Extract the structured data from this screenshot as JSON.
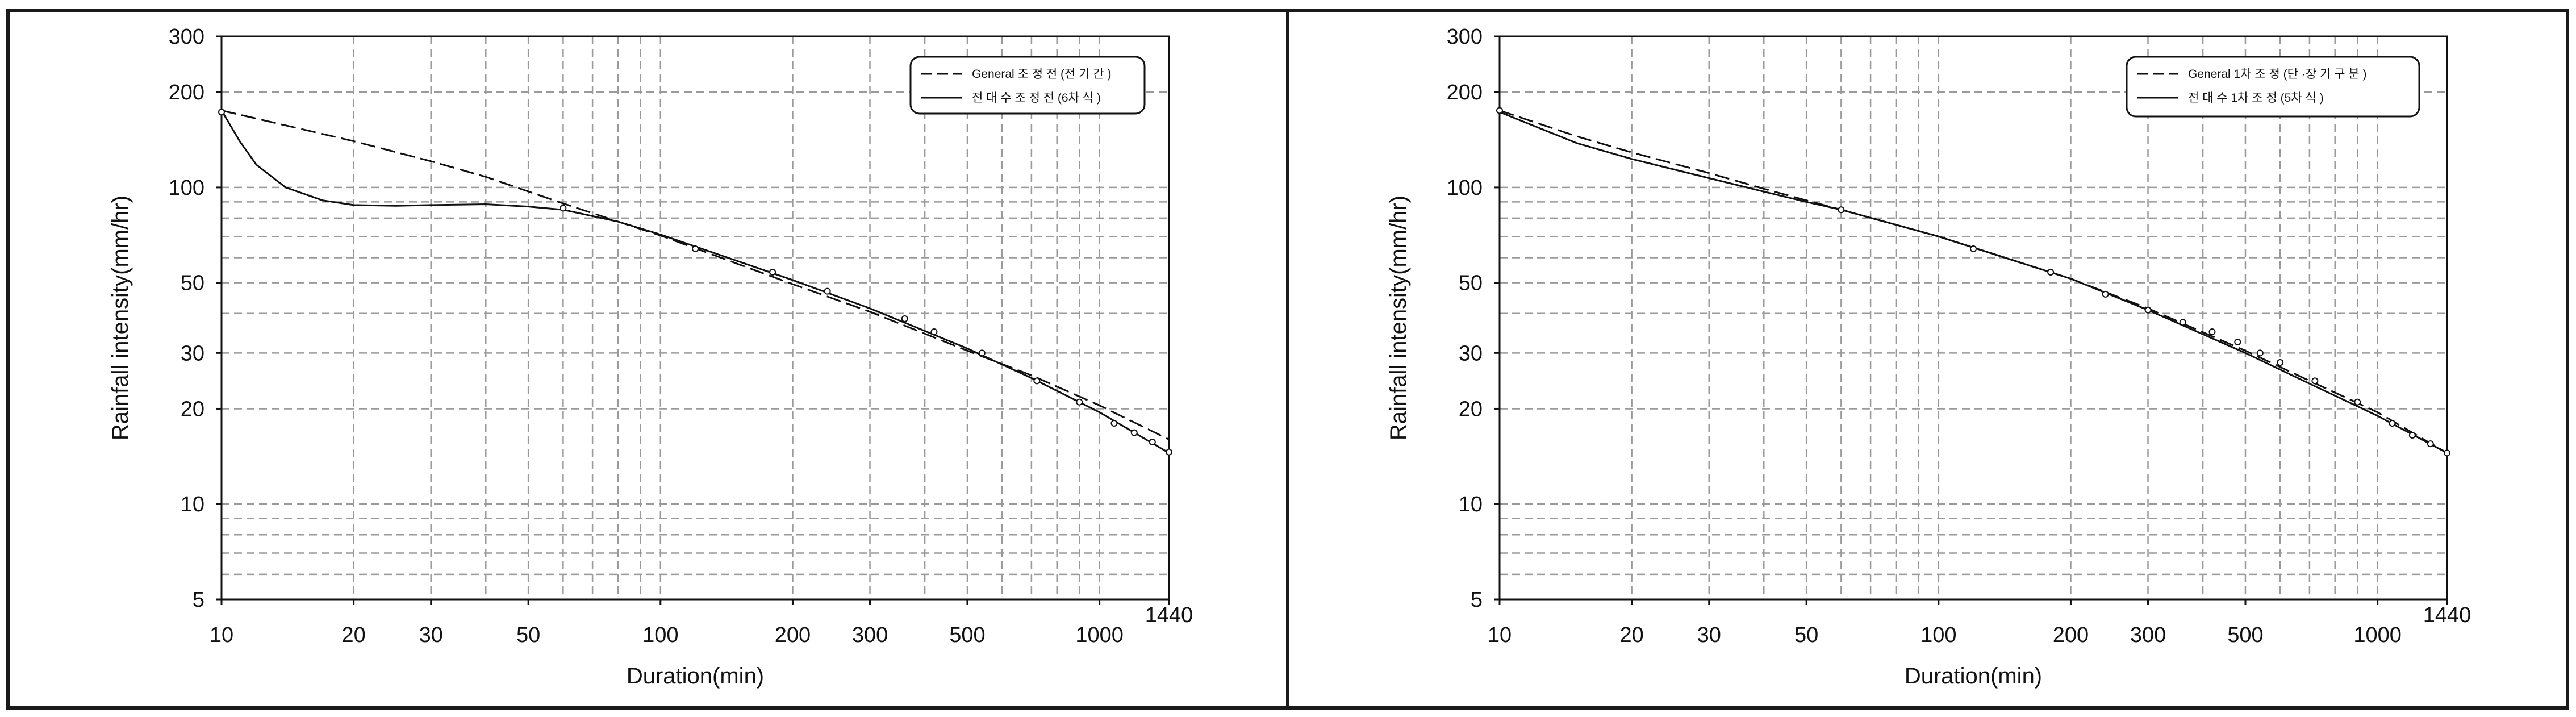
{
  "colors": {
    "frame": "#1a1a1a",
    "grid": "#9a9a9a",
    "curve": "#111111",
    "background": "#ffffff"
  },
  "chart_data": [
    {
      "type": "line",
      "scale": {
        "x": "log",
        "y": "log"
      },
      "grid": true,
      "legend_position": "top-right",
      "xlabel": "Duration(min)",
      "ylabel": "Rainfall intensity(mm/hr)",
      "xlim": [
        10,
        1440
      ],
      "ylim": [
        5,
        300
      ],
      "x_ticks": [
        10,
        20,
        30,
        50,
        100,
        200,
        300,
        500,
        1000,
        1440
      ],
      "y_ticks": [
        5,
        10,
        20,
        30,
        50,
        100,
        200,
        300
      ],
      "series": [
        {
          "name": "General 조 정 전 (전 기 간 )",
          "style": "dashed",
          "x": [
            10,
            20,
            30,
            40,
            60,
            80,
            100,
            200,
            300,
            500,
            700,
            1000,
            1440
          ],
          "y": [
            175,
            140,
            121,
            108,
            89,
            78,
            70.5,
            49.5,
            40.5,
            30.5,
            25.5,
            20.5,
            16
          ]
        },
        {
          "name": "전 대 수 조 정 전 (6차 식 )",
          "style": "solid",
          "x": [
            10,
            11,
            12,
            14,
            17,
            20,
            25,
            30,
            40,
            50,
            60,
            80,
            100,
            200,
            300,
            500,
            700,
            1000,
            1440
          ],
          "y": [
            175,
            140,
            118,
            100,
            91,
            88,
            87.5,
            88,
            88.5,
            87,
            85,
            78,
            71,
            51,
            41.5,
            31,
            25,
            19.5,
            14.5
          ]
        },
        {
          "style": "markers",
          "x": [
            10,
            60,
            120,
            180,
            240,
            360,
            420,
            540,
            720,
            900,
            1080,
            1200,
            1320,
            1440
          ],
          "y": [
            173,
            86,
            64,
            54,
            47,
            38.5,
            35,
            30,
            24.5,
            21,
            18,
            16.8,
            15.7,
            14.6
          ]
        }
      ]
    },
    {
      "type": "line",
      "scale": {
        "x": "log",
        "y": "log"
      },
      "grid": true,
      "legend_position": "top-right",
      "xlabel": "Duration(min)",
      "ylabel": "Rainfall intensity(mm/hr)",
      "xlim": [
        10,
        1440
      ],
      "ylim": [
        5,
        300
      ],
      "x_ticks": [
        10,
        20,
        30,
        50,
        100,
        200,
        300,
        500,
        1000,
        1440
      ],
      "y_ticks": [
        5,
        10,
        20,
        30,
        50,
        100,
        200,
        300
      ],
      "series": [
        {
          "name": "General 1차 조 정 (단 ·장 기 구 분 )",
          "style": "dashed",
          "x": [
            10,
            15,
            20,
            30,
            40,
            50,
            60,
            100,
            200,
            300,
            500,
            700,
            1000,
            1440
          ],
          "y": [
            175,
            145,
            129,
            111,
            99,
            91,
            85,
            70,
            51.5,
            41.5,
            30.5,
            24.5,
            19.5,
            14.5
          ]
        },
        {
          "name": "전 대 수 1차 조 정 (5차 식 )",
          "style": "solid",
          "x": [
            10,
            15,
            20,
            30,
            40,
            50,
            60,
            100,
            200,
            300,
            500,
            700,
            1000,
            1440
          ],
          "y": [
            173,
            138,
            123,
            107,
            97,
            90,
            85,
            70,
            51.5,
            41,
            30,
            24,
            19,
            14.5
          ]
        },
        {
          "style": "markers",
          "x": [
            10,
            60,
            120,
            180,
            240,
            300,
            360,
            420,
            480,
            540,
            600,
            720,
            900,
            1080,
            1200,
            1320,
            1440
          ],
          "y": [
            175,
            85,
            64,
            54,
            46,
            41,
            37.5,
            35,
            32.5,
            30,
            28,
            24.5,
            21,
            18,
            16.5,
            15.5,
            14.5
          ]
        }
      ]
    }
  ]
}
